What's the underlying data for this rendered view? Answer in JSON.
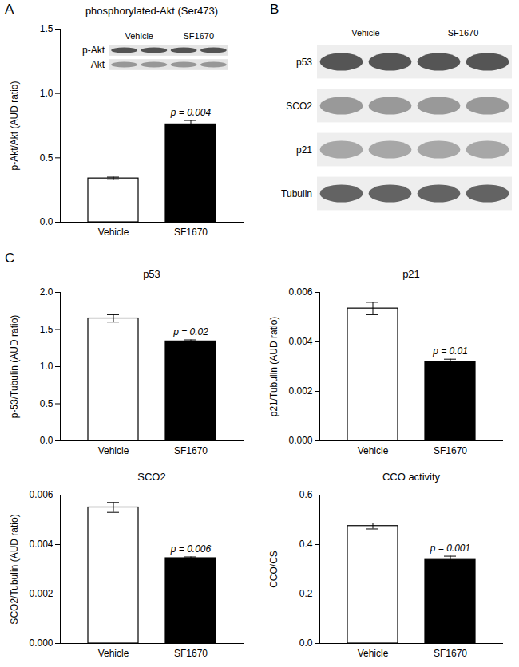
{
  "chart_data": [
    {
      "panel": "A",
      "type": "bar",
      "title": "phosphorylated-Akt (Ser473)",
      "y_label": "p-Akt/Akt (AUD ratio)",
      "categories": [
        "Vehicle",
        "SF1670"
      ],
      "values": [
        0.34,
        0.76
      ],
      "errors": [
        0.01,
        0.03
      ],
      "colors": [
        "#ffffff",
        "#000000"
      ],
      "ylim": [
        0,
        1.5
      ],
      "yticks": [
        {
          "value": 0,
          "label": "0.0"
        },
        0.5,
        {
          "value": 1,
          "label": "1.0"
        },
        1.5
      ],
      "annotations": [
        {
          "category": "SF1670",
          "text": "p = 0.004"
        }
      ],
      "inset": {
        "type": "blot",
        "columns": [
          "Vehicle",
          "SF1670"
        ],
        "rows": [
          "p-Akt",
          "Akt"
        ]
      }
    },
    {
      "panel": "B",
      "type": "blot",
      "columns": [
        "Vehicle",
        "SF1670"
      ],
      "rows": [
        "p53",
        "SCO2",
        "p21",
        "Tubulin"
      ]
    },
    {
      "panel": "C",
      "type": "bar",
      "title": "p53",
      "y_label": "p-53/Tubulin (AUD ratio)",
      "categories": [
        "Vehicle",
        "SF1670"
      ],
      "values": [
        1.65,
        1.34
      ],
      "errors": [
        0.05,
        0.02
      ],
      "colors": [
        "#ffffff",
        "#000000"
      ],
      "ylim": [
        0,
        2
      ],
      "yticks": [
        {
          "value": 0,
          "label": "0.0"
        },
        0.5,
        {
          "value": 1,
          "label": "1.0"
        },
        1.5,
        {
          "value": 2,
          "label": "2.0"
        }
      ],
      "annotations": [
        {
          "category": "SF1670",
          "text": "p = 0.02"
        }
      ]
    },
    {
      "type": "bar",
      "title": "p21",
      "y_label": "p21/Tubulin (AUD ratio)",
      "categories": [
        "Vehicle",
        "SF1670"
      ],
      "values": [
        0.00535,
        0.0032
      ],
      "errors": [
        0.00025,
        0.0001
      ],
      "colors": [
        "#ffffff",
        "#000000"
      ],
      "ylim": [
        0,
        0.006
      ],
      "yticks": [
        {
          "value": 0,
          "label": "0.000"
        },
        0.002,
        0.004,
        0.006
      ],
      "annotations": [
        {
          "category": "SF1670",
          "text": "p = 0.01"
        }
      ]
    },
    {
      "type": "bar",
      "title": "SCO2",
      "y_label": "SCO2/Tubulin (AUD ratio)",
      "categories": [
        "Vehicle",
        "SF1670"
      ],
      "values": [
        0.0055,
        0.00345
      ],
      "errors": [
        0.0002,
        5e-05
      ],
      "colors": [
        "#ffffff",
        "#000000"
      ],
      "ylim": [
        0,
        0.006
      ],
      "yticks": [
        {
          "value": 0,
          "label": "0.000"
        },
        0.002,
        0.004,
        0.006
      ],
      "annotations": [
        {
          "category": "SF1670",
          "text": "p = 0.006"
        }
      ]
    },
    {
      "type": "bar",
      "title": "CCO activity",
      "y_label": "CCO/CS",
      "categories": [
        "Vehicle",
        "SF1670"
      ],
      "values": [
        0.475,
        0.338
      ],
      "errors": [
        0.012,
        0.015
      ],
      "colors": [
        "#ffffff",
        "#000000"
      ],
      "ylim": [
        0,
        0.6
      ],
      "yticks": [
        {
          "value": 0,
          "label": "0.0"
        },
        0.2,
        0.4,
        0.6
      ],
      "annotations": [
        {
          "category": "SF1670",
          "text": "p = 0.001"
        }
      ]
    }
  ]
}
